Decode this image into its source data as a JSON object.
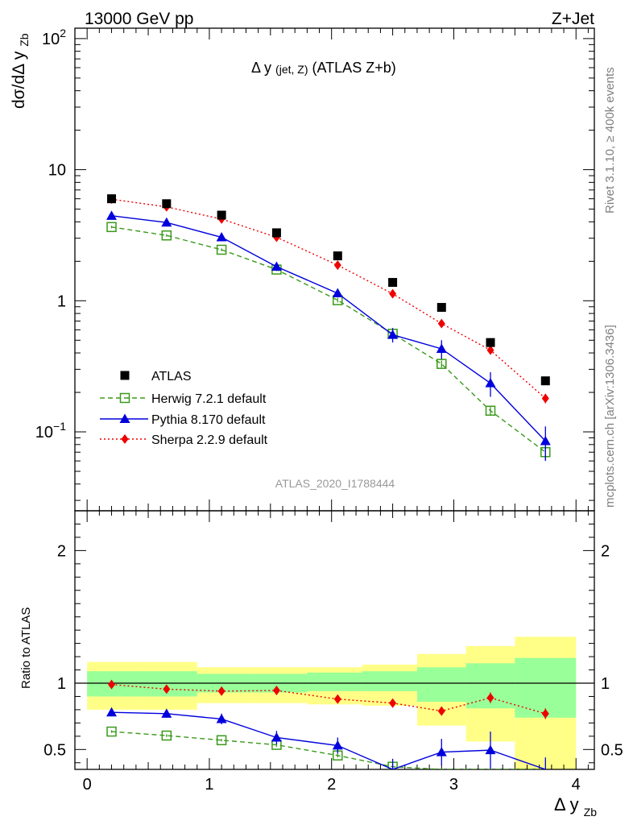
{
  "header": {
    "energy": "13000 GeV pp",
    "process": "Z+Jet"
  },
  "side_labels": {
    "rivet": "Rivet 3.1.10, ≥ 400k events",
    "mcplots": "mcplots.cern.ch [arXiv:1306.3436]"
  },
  "plot_title": {
    "main": "Δ y",
    "sub": "(jet, Z)",
    "rest": " (ATLAS Z+b)"
  },
  "analysis_id": "ATLAS_2020_I1788444",
  "axes": {
    "ylabel_main": "dσ/dΔ y",
    "ylabel_sub": "Zb",
    "ylabel_ratio": "Ratio to ATLAS",
    "xlabel_main": "Δ y",
    "xlabel_sub": "Zb"
  },
  "colors": {
    "atlas": "#000000",
    "herwig": "#3a9a1a",
    "pythia": "#0000dd",
    "sherpa": "#ee0000",
    "band_inner": "#99ff99",
    "band_outer": "#ffff88"
  },
  "chart_data": {
    "type": "scatter",
    "x": [
      0.2,
      0.65,
      1.1,
      1.55,
      2.05,
      2.5,
      2.9,
      3.3,
      3.75
    ],
    "bin_edges": [
      0,
      0.45,
      0.9,
      1.35,
      1.8,
      2.25,
      2.7,
      3.1,
      3.5,
      4.0
    ],
    "xlim": [
      -0.1,
      4.15
    ],
    "xticks": [
      0,
      1,
      2,
      3,
      4
    ],
    "main": {
      "scale": "log",
      "ylim": [
        0.025,
        120
      ],
      "yticks": [
        {
          "v": 0.1,
          "base": "10",
          "exp": "−1"
        },
        {
          "v": 1,
          "base": "1",
          "exp": ""
        },
        {
          "v": 10,
          "base": "10",
          "exp": ""
        },
        {
          "v": 100,
          "base": "10",
          "exp": "2"
        }
      ]
    },
    "ratio": {
      "scale": "linear",
      "ylim": [
        0.35,
        2.3
      ],
      "yticks": [
        0.5,
        1,
        2
      ],
      "band_inner": [
        [
          0.9,
          1.09
        ],
        [
          0.9,
          1.09
        ],
        [
          0.93,
          1.07
        ],
        [
          0.93,
          1.07
        ],
        [
          0.94,
          1.08
        ],
        [
          0.94,
          1.09
        ],
        [
          0.86,
          1.12
        ],
        [
          0.81,
          1.15
        ],
        [
          0.74,
          1.19
        ]
      ],
      "band_outer": [
        [
          0.8,
          1.16
        ],
        [
          0.8,
          1.16
        ],
        [
          0.85,
          1.12
        ],
        [
          0.85,
          1.12
        ],
        [
          0.84,
          1.12
        ],
        [
          0.83,
          1.14
        ],
        [
          0.68,
          1.22
        ],
        [
          0.56,
          1.28
        ],
        [
          0.35,
          1.35
        ]
      ]
    },
    "series": [
      {
        "name": "ATLAS",
        "key": "atlas",
        "marker": "square-filled",
        "line": "none",
        "values": [
          6.0,
          5.5,
          4.5,
          3.3,
          2.2,
          1.38,
          0.89,
          0.48,
          0.245
        ],
        "ratio": [
          1,
          1,
          1,
          1,
          1,
          1,
          1,
          1,
          1
        ],
        "ratio_err": [
          0,
          0,
          0,
          0,
          0,
          0,
          0,
          0,
          0
        ]
      },
      {
        "name": "Herwig 7.2.1 default",
        "key": "herwig",
        "marker": "square-open",
        "line": "dashed",
        "values": [
          3.65,
          3.15,
          2.45,
          1.73,
          1.01,
          0.56,
          0.33,
          0.145,
          0.07
        ],
        "errors": [
          0.08,
          0.07,
          0.06,
          0.05,
          0.04,
          0.03,
          0.02,
          0.01,
          0.008
        ],
        "ratio": [
          0.635,
          0.605,
          0.57,
          0.535,
          0.455,
          0.37,
          0.3,
          0.26,
          0.22
        ],
        "ratio_err": [
          0.01,
          0.01,
          0.01,
          0.015,
          0.015,
          0.02,
          0.02,
          0.02,
          0.02
        ]
      },
      {
        "name": "Pythia 8.170 default",
        "key": "pythia",
        "marker": "triangle-filled",
        "line": "solid",
        "values": [
          4.45,
          3.95,
          3.05,
          1.82,
          1.14,
          0.55,
          0.43,
          0.235,
          0.085
        ],
        "errors": [
          0.12,
          0.12,
          0.1,
          0.1,
          0.08,
          0.07,
          0.07,
          0.05,
          0.025
        ],
        "ratio": [
          0.78,
          0.77,
          0.73,
          0.59,
          0.53,
          0.34,
          0.48,
          0.495,
          0.32
        ],
        "ratio_err": [
          0.03,
          0.03,
          0.04,
          0.05,
          0.06,
          0.09,
          0.1,
          0.14,
          0.12
        ]
      },
      {
        "name": "Sherpa 2.2.9 default",
        "key": "sherpa",
        "marker": "diamond-filled",
        "line": "dotted",
        "values": [
          5.95,
          5.2,
          4.2,
          3.05,
          1.87,
          1.13,
          0.67,
          0.42,
          0.18
        ],
        "errors": [
          0.1,
          0.08,
          0.07,
          0.06,
          0.05,
          0.04,
          0.03,
          0.03,
          0.015
        ],
        "ratio": [
          0.99,
          0.955,
          0.94,
          0.945,
          0.88,
          0.85,
          0.79,
          0.89,
          0.77
        ],
        "ratio_err": [
          0.01,
          0.01,
          0.01,
          0.01,
          0.015,
          0.02,
          0.025,
          0.04,
          0.04
        ]
      }
    ],
    "legend_position": "lower-left"
  }
}
